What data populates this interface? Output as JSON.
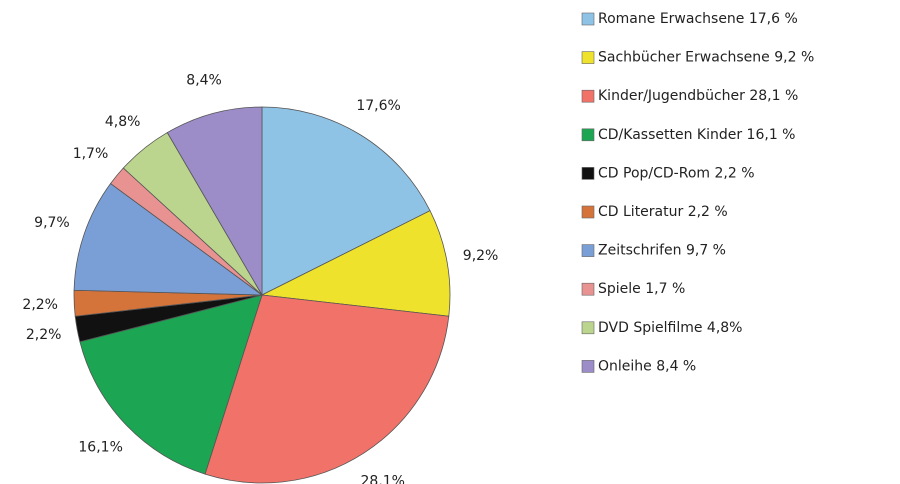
{
  "chart_data": {
    "type": "pie",
    "categories": [
      "Romane Erwachsene 17,6 %",
      "Sachbücher Erwachsene 9,2 %",
      "Kinder/Jugendbücher 28,1 %",
      "CD/Kassetten Kinder 16,1 %",
      "CD Pop/CD-Rom 2,2 %",
      "CD Literatur 2,2 %",
      "Zeitschrifen 9,7 %",
      "Spiele 1,7 %",
      "DVD Spielfilme 4,8%",
      "Onleihe 8,4 %"
    ],
    "values": [
      17.6,
      9.2,
      28.1,
      16.1,
      2.2,
      2.2,
      9.7,
      1.7,
      4.8,
      8.4
    ],
    "value_labels": [
      "17,6%",
      "9,2%",
      "28,1%",
      "16,1%",
      "2,2%",
      "2,2%",
      "9,7%",
      "1,7%",
      "4,8%",
      "8,4%"
    ],
    "colors": [
      "#8fc3e6",
      "#efe22c",
      "#f07268",
      "#1ca552",
      "#111111",
      "#d4733a",
      "#7a9fd6",
      "#e89292",
      "#bcd58e",
      "#9c8cc7"
    ]
  }
}
